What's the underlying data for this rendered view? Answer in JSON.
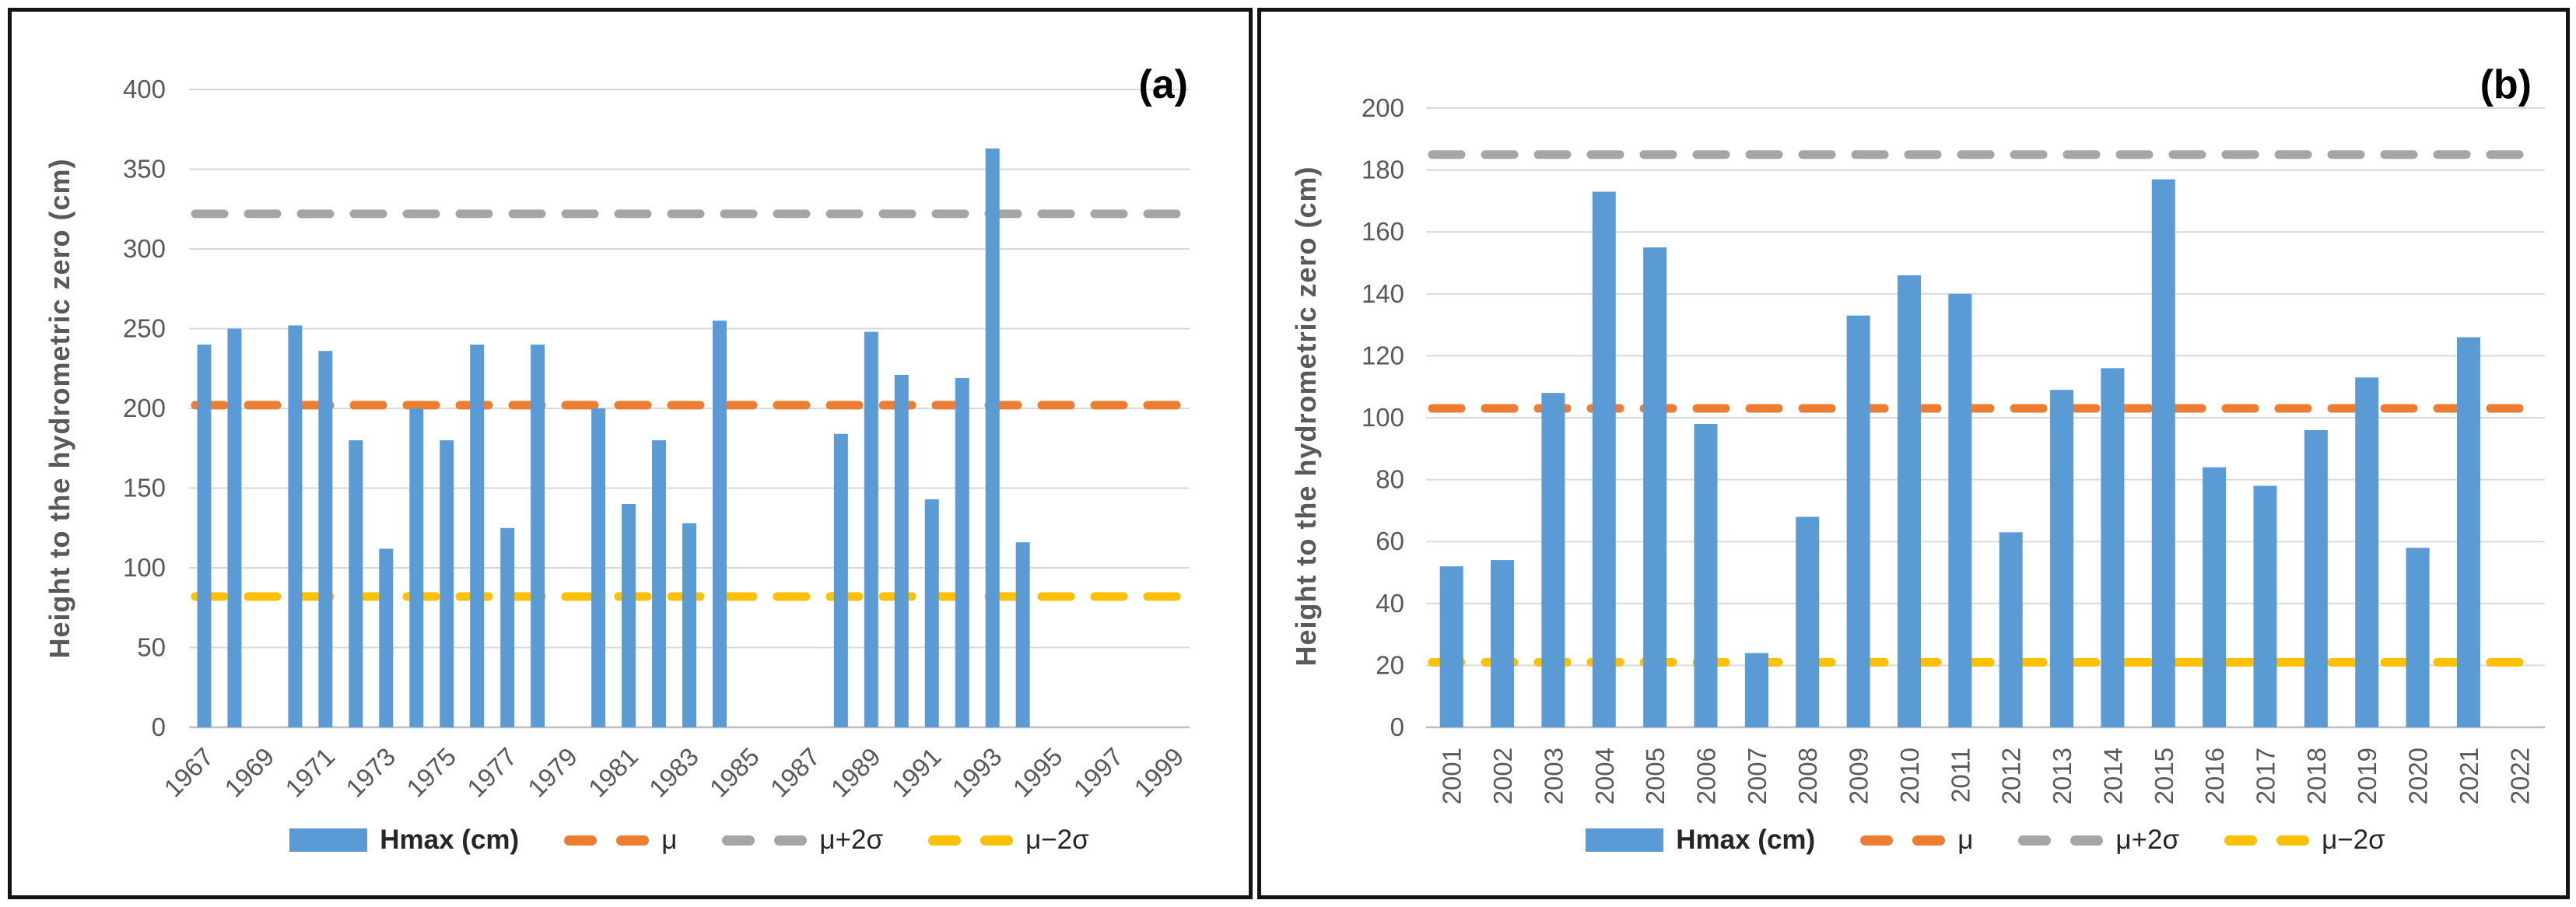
{
  "figure": {
    "panels": [
      {
        "label": "(a)",
        "y_axis_title": "Height to the hydrometric zero (cm)",
        "legend": [
          {
            "key": "hmax",
            "label": "Hmax (cm)",
            "swatch": "bar",
            "color": "#5B9BD5"
          },
          {
            "key": "mu",
            "label": "μ",
            "swatch": "dash",
            "color": "#ED7D31"
          },
          {
            "key": "mu-plus-2sigma",
            "label": "μ+2σ",
            "swatch": "dash",
            "color": "#A5A5A5"
          },
          {
            "key": "mu-minus-2sigma",
            "label": "μ−2σ",
            "swatch": "dash",
            "color": "#FFC000"
          }
        ]
      },
      {
        "label": "(b)",
        "y_axis_title": "Height to the hydrometric zero (cm)",
        "legend": [
          {
            "key": "hmax",
            "label": "Hmax (cm)",
            "swatch": "bar",
            "color": "#5B9BD5"
          },
          {
            "key": "mu",
            "label": "μ",
            "swatch": "dash",
            "color": "#ED7D31"
          },
          {
            "key": "mu-plus-2sigma",
            "label": "μ+2σ",
            "swatch": "dash",
            "color": "#A5A5A5"
          },
          {
            "key": "mu-minus-2sigma",
            "label": "μ−2σ",
            "swatch": "dash",
            "color": "#FFC000"
          }
        ]
      }
    ],
    "colors": {
      "bar": "#5B9BD5",
      "mu_line": "#ED7D31",
      "mu_plus_line": "#A5A5A5",
      "mu_minus_line": "#FFC000"
    }
  },
  "chart_data": [
    {
      "type": "bar",
      "panel": "(a)",
      "title": "",
      "xlabel": "",
      "ylabel": "Height to the hydrometric zero (cm)",
      "ylim": [
        0,
        400
      ],
      "ytick_step": 50,
      "grid": true,
      "legend_position": "bottom",
      "x": [
        1967,
        1968,
        1969,
        1970,
        1971,
        1972,
        1973,
        1974,
        1975,
        1976,
        1977,
        1978,
        1979,
        1980,
        1981,
        1982,
        1983,
        1984,
        1985,
        1986,
        1987,
        1988,
        1989,
        1990,
        1991,
        1992,
        1993,
        1994,
        1995,
        1996,
        1997,
        1998,
        1999
      ],
      "xtick_labels": [
        "1967",
        "1969",
        "1971",
        "1973",
        "1975",
        "1977",
        "1979",
        "1981",
        "1983",
        "1985",
        "1987",
        "1989",
        "1991",
        "1993",
        "1995",
        "1997",
        "1999"
      ],
      "series": [
        {
          "name": "Hmax (cm)",
          "color": "#5B9BD5",
          "values": [
            240,
            250,
            null,
            252,
            236,
            180,
            112,
            200,
            180,
            240,
            125,
            240,
            null,
            200,
            140,
            180,
            128,
            255,
            null,
            null,
            null,
            184,
            248,
            221,
            143,
            219,
            363,
            116,
            null,
            null,
            null,
            null,
            null
          ]
        }
      ],
      "reference_lines": [
        {
          "key": "mu",
          "name": "μ",
          "value": 202,
          "color": "#ED7D31",
          "style": "dashed"
        },
        {
          "key": "mu-plus-2sigma",
          "name": "μ+2σ",
          "value": 322,
          "color": "#A5A5A5",
          "style": "dashed"
        },
        {
          "key": "mu-minus-2sigma",
          "name": "μ−2σ",
          "value": 82,
          "color": "#FFC000",
          "style": "dashed"
        }
      ]
    },
    {
      "type": "bar",
      "panel": "(b)",
      "title": "",
      "xlabel": "",
      "ylabel": "Height to the hydrometric zero (cm)",
      "ylim": [
        0,
        200
      ],
      "ytick_step": 20,
      "grid": true,
      "legend_position": "bottom",
      "x": [
        2001,
        2002,
        2003,
        2004,
        2005,
        2006,
        2007,
        2008,
        2009,
        2010,
        2011,
        2012,
        2013,
        2014,
        2015,
        2016,
        2017,
        2018,
        2019,
        2020,
        2021,
        2022
      ],
      "xtick_labels": [
        "2001",
        "2002",
        "2003",
        "2004",
        "2005",
        "2006",
        "2007",
        "2008",
        "2009",
        "2010",
        "2011",
        "2012",
        "2013",
        "2014",
        "2015",
        "2016",
        "2017",
        "2018",
        "2019",
        "2020",
        "2021",
        "2022"
      ],
      "series": [
        {
          "name": "Hmax (cm)",
          "color": "#5B9BD5",
          "values": [
            52,
            54,
            108,
            173,
            155,
            98,
            24,
            68,
            133,
            146,
            140,
            63,
            109,
            116,
            177,
            84,
            78,
            96,
            113,
            58,
            126,
            null
          ]
        }
      ],
      "reference_lines": [
        {
          "key": "mu",
          "name": "μ",
          "value": 103,
          "color": "#ED7D31",
          "style": "dashed"
        },
        {
          "key": "mu-plus-2sigma",
          "name": "μ+2σ",
          "value": 185,
          "color": "#A5A5A5",
          "style": "dashed"
        },
        {
          "key": "mu-minus-2sigma",
          "name": "μ−2σ",
          "value": 21,
          "color": "#FFC000",
          "style": "dashed"
        }
      ]
    }
  ]
}
